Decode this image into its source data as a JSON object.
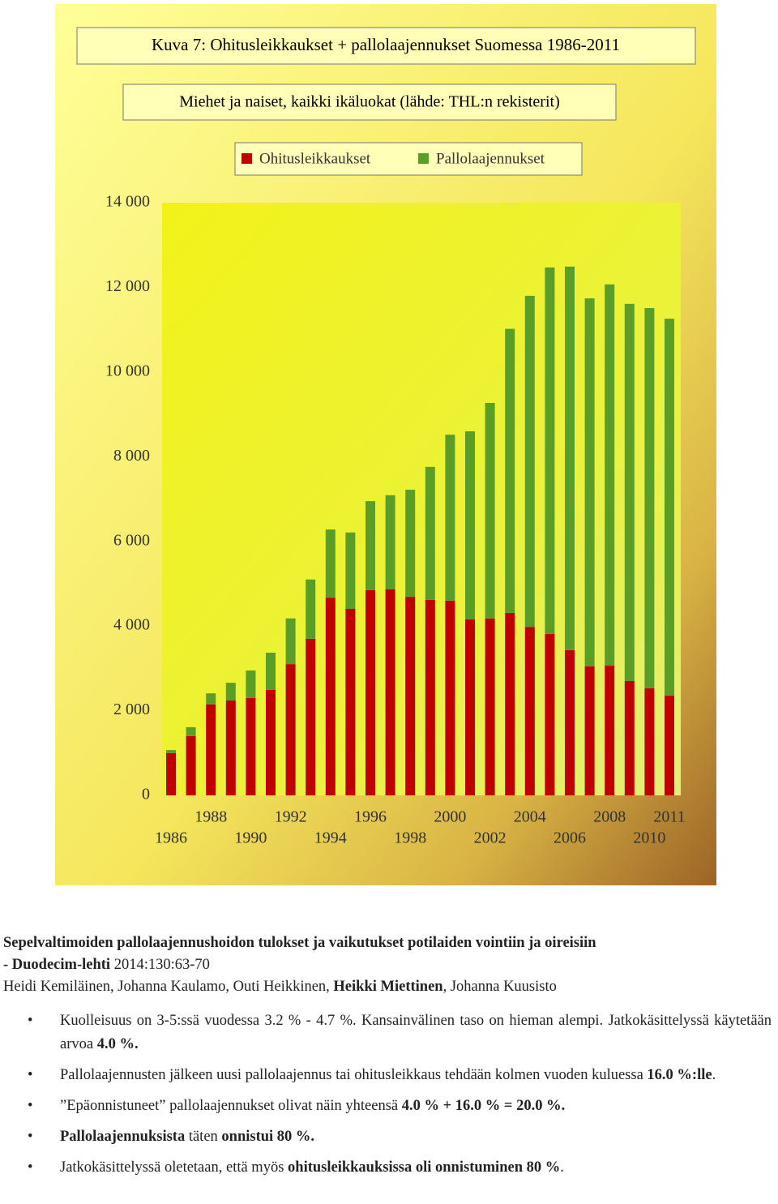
{
  "chart_data": {
    "type": "stacked-bar",
    "title": "Kuva 7: Ohitusleikkaukset + pallolaajennukset Suomessa 1986-2011",
    "subtitle": "Miehet ja naiset, kaikki ikäluokat (lähde: THL:n rekisterit)",
    "categories": [
      "1986",
      null,
      "1988",
      null,
      "1990",
      null,
      "1992",
      null,
      "1994",
      null,
      "1996",
      null,
      "1998",
      null,
      "2000",
      null,
      "2002",
      null,
      "2004",
      null,
      "2006",
      null,
      "2008",
      null,
      "2010",
      "2011"
    ],
    "series": [
      {
        "name": "Ohitusleikkaukset",
        "color": "#c00000",
        "values": [
          1000,
          1400,
          2150,
          2240,
          2300,
          2490,
          3100,
          3700,
          4670,
          4410,
          4850,
          4870,
          4690,
          4620,
          4600,
          4160,
          4180,
          4310,
          3980,
          3810,
          3430,
          3050,
          3070,
          2700,
          2530,
          2360
        ]
      },
      {
        "name": "Pallolaajennukset",
        "color": "#5a9e28",
        "values": [
          70,
          210,
          260,
          420,
          650,
          880,
          1080,
          1400,
          1610,
          1800,
          2100,
          2220,
          2530,
          3140,
          3920,
          4440,
          5090,
          6710,
          7820,
          8660,
          9060,
          8690,
          9000,
          8910,
          8980,
          8900
        ]
      }
    ],
    "ylim": [
      0,
      14000
    ],
    "yticks": [
      0,
      {
        "value": 2000,
        "label": "2 000"
      },
      {
        "value": 4000,
        "label": "4 000"
      },
      {
        "value": 6000,
        "label": "6 000"
      },
      {
        "value": 8000,
        "label": "8 000"
      },
      {
        "value": 10000,
        "label": "10 000"
      },
      {
        "value": 12000,
        "label": "12 000"
      },
      {
        "value": 14000,
        "label": "14 000"
      }
    ],
    "legend": "top"
  },
  "source": {
    "lines": [
      [
        {
          "text": "Sepelvaltimoiden pallolaajennushoidon tulokset ja vaikutukset potilaiden vointiin ja oireisiin",
          "bold": true
        }
      ],
      [
        {
          "text": "- Duodecim-lehti",
          "bold": true
        },
        {
          "text": " 2014:130:63-70",
          "bold": false
        }
      ],
      [
        {
          "text": "Heidi Kemiläinen, Johanna Kaulamo, Outi Heikkinen, ",
          "bold": false
        },
        {
          "text": "Heikki Miettinen",
          "bold": true
        },
        {
          "text": ", Johanna Kuusisto",
          "bold": false
        }
      ]
    ]
  },
  "bullets": [
    [
      {
        "text": "Kuolleisuus on 3-5:ssä vuodessa 3.2 % - 4.7 %. Kansainvälinen taso on hieman alempi. Jatkokäsittelyssä käytetään arvoa ",
        "bold": false
      },
      {
        "text": "4.0 %.",
        "bold": true
      }
    ],
    [
      {
        "text": "Pallolaajennusten jälkeen uusi pallolaajennus tai ohitusleikkaus tehdään kolmen vuoden kuluessa ",
        "bold": false
      },
      {
        "text": "16.0 %:lle",
        "bold": true
      },
      {
        "text": ".",
        "bold": false
      }
    ],
    [
      {
        "text": "”Epäonnistuneet” pallolaajennukset olivat näin yhteensä ",
        "bold": false
      },
      {
        "text": "4.0 % + 16.0 % = 20.0 %.",
        "bold": true
      }
    ],
    [
      {
        "text": "Pallolaajennuksista",
        "bold": true
      },
      {
        "text": " täten ",
        "bold": false
      },
      {
        "text": "onnistui 80 %.",
        "bold": true
      }
    ],
    [
      {
        "text": "Jatkokäsittelyssä oletetaan, että myös ",
        "bold": false
      },
      {
        "text": "ohitusleikkauksissa oli onnistuminen 80 %",
        "bold": true
      },
      {
        "text": ".",
        "bold": false
      }
    ]
  ]
}
